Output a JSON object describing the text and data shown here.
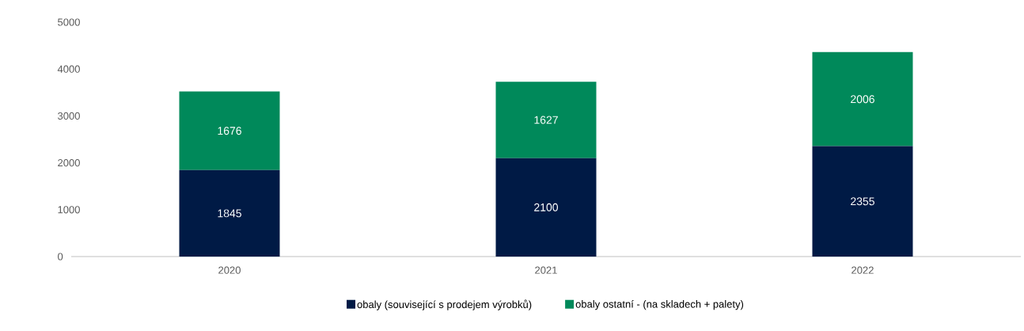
{
  "chart_data": {
    "type": "bar",
    "stacked": true,
    "categories": [
      "2020",
      "2021",
      "2022"
    ],
    "series": [
      {
        "name": "obaly (související s prodejem výrobků)",
        "color": "#001a45",
        "values": [
          1845,
          2100,
          2355
        ]
      },
      {
        "name": "obaly ostatní - (na skladech + palety)",
        "color": "#00895a",
        "values": [
          1676,
          1627,
          2006
        ]
      }
    ],
    "ylim": [
      0,
      5000
    ],
    "yticks": [
      0,
      1000,
      2000,
      3000,
      4000,
      5000
    ],
    "data_labels": true,
    "legend": "bottom",
    "grid": false
  }
}
